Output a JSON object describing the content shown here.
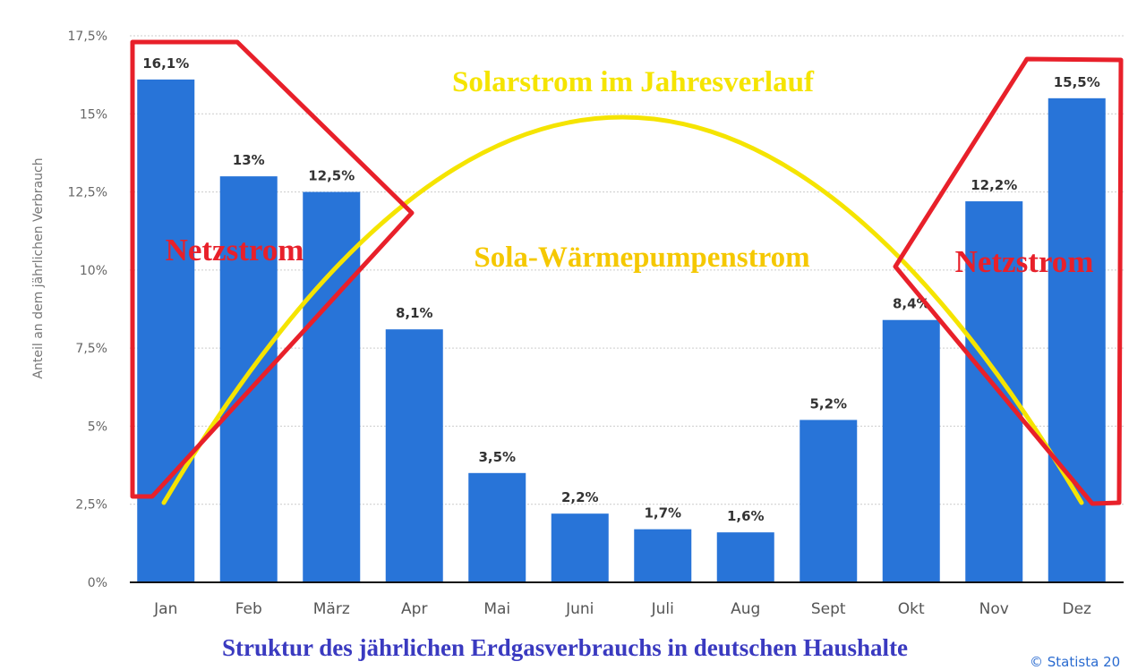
{
  "chart_data": {
    "type": "bar",
    "categories": [
      "Jan",
      "Feb",
      "März",
      "Apr",
      "Mai",
      "Juni",
      "Juli",
      "Aug",
      "Sept",
      "Okt",
      "Nov",
      "Dez"
    ],
    "values": [
      16.1,
      13,
      12.5,
      8.1,
      3.5,
      2.2,
      1.7,
      1.6,
      5.2,
      8.4,
      12.2,
      15.5
    ],
    "data_labels": [
      "16,1%",
      "13%",
      "12,5%",
      "8,1%",
      "3,5%",
      "2,2%",
      "1,7%",
      "1,6%",
      "5,2%",
      "8,4%",
      "12,2%",
      "15,5%"
    ],
    "ylabel": "Anteil an dem jährlichen Verbrauch",
    "ylim": [
      0,
      17.5
    ],
    "yticks": [
      0,
      2.5,
      5,
      7.5,
      10,
      12.5,
      15,
      17.5
    ],
    "ytick_labels": [
      "0%",
      "2,5%",
      "5%",
      "7,5%",
      "10%",
      "12,5%",
      "15%",
      "17,5%"
    ],
    "grid": true,
    "bar_color": "#2874d8",
    "title": "Struktur des jährlichen Erdgasverbrauchs in deutschen Haushalte"
  },
  "annotations": {
    "solar_title": "Solarstrom im Jahresverlauf",
    "solar_heatpump": "Sola-Wärmepumpenstrom",
    "grid_left": "Netzstrom",
    "grid_right": "Netzstrom",
    "credit": "© Statista 20",
    "colors": {
      "red": "#e8202a",
      "yellow": "#f5e400",
      "title": "#3a3ac0"
    }
  }
}
